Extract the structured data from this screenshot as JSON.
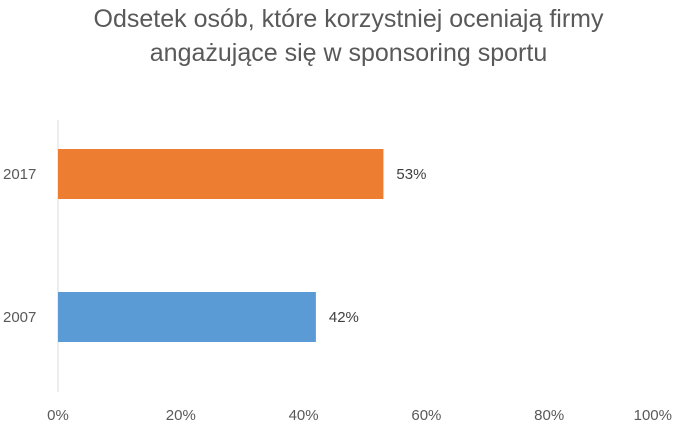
{
  "chart_data": {
    "type": "bar",
    "orientation": "horizontal",
    "title_lines": [
      "Odsetek osób, które korzystniej oceniają firmy",
      "angażujące się w sponsoring sportu"
    ],
    "categories": [
      "2017",
      "2007"
    ],
    "values": [
      53,
      42
    ],
    "data_labels": [
      "53%",
      "42%"
    ],
    "bar_colors": [
      "#ED7D31",
      "#5B9BD5"
    ],
    "xlim": [
      0,
      100
    ],
    "x_ticks": [
      0,
      20,
      40,
      60,
      80,
      100
    ],
    "x_tick_labels": [
      "0%",
      "20%",
      "40%",
      "60%",
      "80%",
      "100%"
    ],
    "grid": false,
    "legend": "none"
  }
}
